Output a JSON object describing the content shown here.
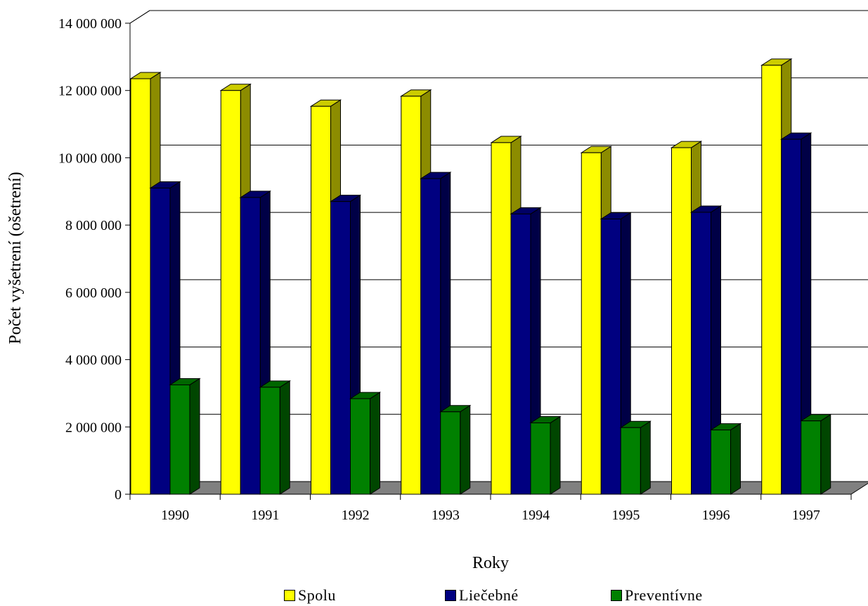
{
  "chart_data": {
    "type": "bar",
    "title": "",
    "xlabel": "Roky",
    "ylabel": "Počet vyšetrení (ošetrení)",
    "categories": [
      "1990",
      "1991",
      "1992",
      "1993",
      "1994",
      "1995",
      "1996",
      "1997"
    ],
    "ylim": [
      0,
      14000000
    ],
    "yticks": [
      0,
      2000000,
      4000000,
      6000000,
      8000000,
      10000000,
      12000000,
      14000000
    ],
    "ytick_labels": [
      "0",
      "2 000 000",
      "4 000 000",
      "6 000 000",
      "8 000 000",
      "10 000 000",
      "12 000 000",
      "14 000 000"
    ],
    "grid": true,
    "style": "3d-column",
    "legend_position": "bottom",
    "series": [
      {
        "name": "Spolu",
        "color": "#ffff00",
        "values": [
          12350000,
          12000000,
          11530000,
          11830000,
          10450000,
          10150000,
          10300000,
          12750000
        ]
      },
      {
        "name": "Liečebné",
        "color": "#000080",
        "values": [
          9100000,
          8820000,
          8700000,
          9380000,
          8330000,
          8180000,
          8380000,
          10550000
        ]
      },
      {
        "name": "Preventívne",
        "color": "#008000",
        "values": [
          3250000,
          3180000,
          2840000,
          2450000,
          2120000,
          1980000,
          1910000,
          2180000
        ]
      }
    ]
  }
}
